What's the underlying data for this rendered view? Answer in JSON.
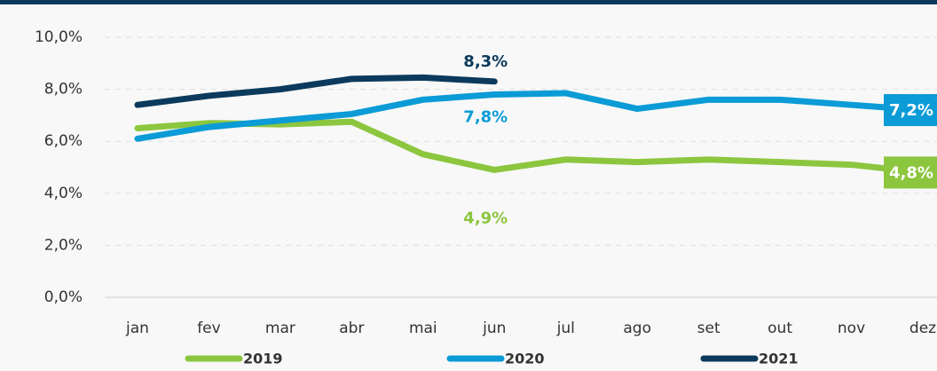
{
  "chart_data": {
    "type": "line",
    "categories": [
      "jan",
      "fev",
      "mar",
      "abr",
      "mai",
      "jun",
      "jul",
      "ago",
      "set",
      "out",
      "nov",
      "dez"
    ],
    "series": [
      {
        "name": "2019",
        "color": "#8cc63f",
        "values": [
          6.5,
          6.7,
          6.65,
          6.75,
          5.5,
          4.9,
          5.3,
          5.2,
          5.3,
          5.2,
          5.1,
          4.8
        ],
        "value_labels": [
          null,
          null,
          null,
          null,
          null,
          "4,9%",
          null,
          null,
          null,
          null,
          null,
          "4,8%"
        ]
      },
      {
        "name": "2020",
        "color": "#0b9bd6",
        "values": [
          6.1,
          6.55,
          6.8,
          7.05,
          7.6,
          7.8,
          7.85,
          7.25,
          7.6,
          7.6,
          7.4,
          7.2
        ],
        "value_labels": [
          null,
          null,
          null,
          null,
          null,
          "7,8%",
          null,
          null,
          null,
          null,
          null,
          "7,2%"
        ]
      },
      {
        "name": "2021",
        "color": "#0b3a5c",
        "values": [
          7.4,
          7.75,
          8.0,
          8.4,
          8.45,
          8.3,
          null,
          null,
          null,
          null,
          null,
          null
        ],
        "value_labels": [
          null,
          null,
          null,
          null,
          null,
          "8,3%",
          null,
          null,
          null,
          null,
          null,
          null
        ]
      }
    ],
    "ylim": [
      0,
      10
    ],
    "yticks": [
      {
        "value": 0,
        "label": "0,0%"
      },
      {
        "value": 2,
        "label": "2,0%"
      },
      {
        "value": 4,
        "label": "4,0%"
      },
      {
        "value": 6,
        "label": "6,0%"
      },
      {
        "value": 8,
        "label": "8,0%"
      },
      {
        "value": 10,
        "label": "10,0%"
      }
    ],
    "grid": true,
    "legend": "bottom"
  }
}
